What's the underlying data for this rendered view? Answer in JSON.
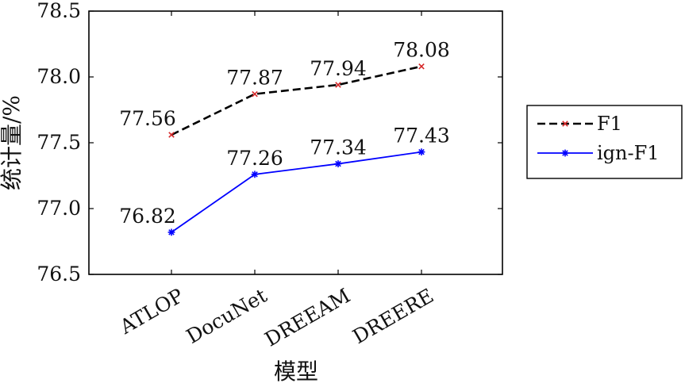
{
  "chart_data": {
    "type": "line",
    "categories": [
      "ATLOP",
      "DocuNet",
      "DREEAM",
      "DREERE"
    ],
    "series": [
      {
        "name": "F1",
        "values": [
          77.56,
          77.87,
          77.94,
          78.08
        ],
        "labels": [
          "77.56",
          "77.87",
          "77.94",
          "78.08"
        ],
        "color": "#000000",
        "marker_color": "#d62728",
        "marker": "x",
        "line_style": "dashed"
      },
      {
        "name": "ign-F1",
        "values": [
          76.82,
          77.26,
          77.34,
          77.43
        ],
        "labels": [
          "76.82",
          "77.26",
          "77.34",
          "77.43"
        ],
        "color": "#0000ff",
        "marker_color": "#0000ff",
        "marker": "asterisk",
        "line_style": "solid"
      }
    ],
    "xlabel": "模型",
    "ylabel": "统计量/%",
    "ylim": [
      76.5,
      78.5
    ],
    "yticks": [
      "76.5",
      "77.0",
      "77.5",
      "78.0",
      "78.5"
    ],
    "grid": false,
    "legend_position": "outside-right"
  }
}
